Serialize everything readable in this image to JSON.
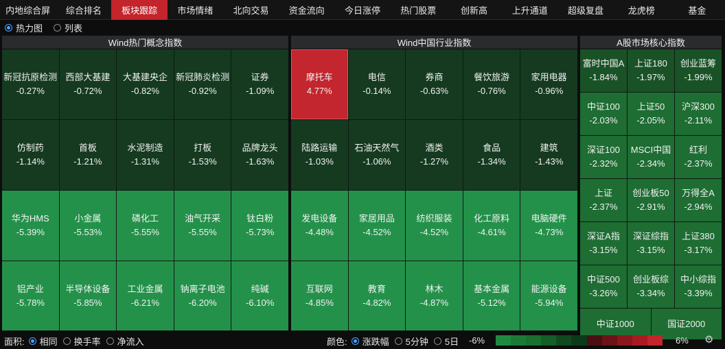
{
  "nav": {
    "tabs": [
      "内地综合屏",
      "综合排名",
      "板块跟踪",
      "市场情绪",
      "北向交易",
      "资金流向",
      "今日涨停",
      "热门股票",
      "创新高",
      "上升通道",
      "超级复盘",
      "龙虎榜",
      "基金"
    ],
    "active": "板块跟踪"
  },
  "view": {
    "options": [
      "热力图",
      "列表"
    ],
    "selected": "热力图"
  },
  "panels": [
    {
      "title": "Wind热门概念指数",
      "cells": [
        {
          "name": "新冠抗原检测",
          "pct": "-0.27%",
          "tone": "c-dark"
        },
        {
          "name": "西部大基建",
          "pct": "-0.72%",
          "tone": "c-dark"
        },
        {
          "name": "大基建央企",
          "pct": "-0.82%",
          "tone": "c-dark"
        },
        {
          "name": "新冠肺炎检测",
          "pct": "-0.92%",
          "tone": "c-dark"
        },
        {
          "name": "证券",
          "pct": "-1.09%",
          "tone": "c-dark"
        },
        {
          "name": "仿制药",
          "pct": "-1.14%",
          "tone": "c-dark"
        },
        {
          "name": "首板",
          "pct": "-1.21%",
          "tone": "c-dark"
        },
        {
          "name": "水泥制造",
          "pct": "-1.31%",
          "tone": "c-dark"
        },
        {
          "name": "打板",
          "pct": "-1.53%",
          "tone": "c-dark"
        },
        {
          "name": "品牌龙头",
          "pct": "-1.63%",
          "tone": "c-dark"
        },
        {
          "name": "华为HMS",
          "pct": "-5.39%",
          "tone": "c-bright"
        },
        {
          "name": "小金属",
          "pct": "-5.53%",
          "tone": "c-bright"
        },
        {
          "name": "磷化工",
          "pct": "-5.55%",
          "tone": "c-bright"
        },
        {
          "name": "油气开采",
          "pct": "-5.55%",
          "tone": "c-bright"
        },
        {
          "name": "钛白粉",
          "pct": "-5.73%",
          "tone": "c-bright"
        },
        {
          "name": "铝产业",
          "pct": "-5.78%",
          "tone": "c-bright"
        },
        {
          "name": "半导体设备",
          "pct": "-5.85%",
          "tone": "c-bright"
        },
        {
          "name": "工业金属",
          "pct": "-6.21%",
          "tone": "c-bright"
        },
        {
          "name": "钠离子电池",
          "pct": "-6.20%",
          "tone": "c-bright"
        },
        {
          "name": "纯碱",
          "pct": "-6.10%",
          "tone": "c-bright"
        }
      ]
    },
    {
      "title": "Wind中国行业指数",
      "cells": [
        {
          "name": "摩托车",
          "pct": "4.77%",
          "tone": "c-red"
        },
        {
          "name": "电信",
          "pct": "-0.14%",
          "tone": "c-dark"
        },
        {
          "name": "券商",
          "pct": "-0.63%",
          "tone": "c-dark"
        },
        {
          "name": "餐饮旅游",
          "pct": "-0.76%",
          "tone": "c-dark"
        },
        {
          "name": "家用电器",
          "pct": "-0.96%",
          "tone": "c-dark"
        },
        {
          "name": "陆路运输",
          "pct": "-1.03%",
          "tone": "c-dark"
        },
        {
          "name": "石油天然气",
          "pct": "-1.06%",
          "tone": "c-dark"
        },
        {
          "name": "酒类",
          "pct": "-1.27%",
          "tone": "c-dark"
        },
        {
          "name": "食品",
          "pct": "-1.34%",
          "tone": "c-dark"
        },
        {
          "name": "建筑",
          "pct": "-1.43%",
          "tone": "c-dark"
        },
        {
          "name": "发电设备",
          "pct": "-4.48%",
          "tone": "c-bright"
        },
        {
          "name": "家居用品",
          "pct": "-4.52%",
          "tone": "c-bright"
        },
        {
          "name": "纺织服装",
          "pct": "-4.52%",
          "tone": "c-bright"
        },
        {
          "name": "化工原料",
          "pct": "-4.61%",
          "tone": "c-bright"
        },
        {
          "name": "电脑硬件",
          "pct": "-4.73%",
          "tone": "c-bright"
        },
        {
          "name": "互联网",
          "pct": "-4.85%",
          "tone": "c-bright"
        },
        {
          "name": "教育",
          "pct": "-4.82%",
          "tone": "c-bright"
        },
        {
          "name": "林木",
          "pct": "-4.87%",
          "tone": "c-bright"
        },
        {
          "name": "基本金属",
          "pct": "-5.12%",
          "tone": "c-bright"
        },
        {
          "name": "能源设备",
          "pct": "-5.94%",
          "tone": "c-bright"
        }
      ]
    },
    {
      "title": "A股市场核心指数",
      "cells": [
        {
          "name": "富时中国A",
          "pct": "-1.84%",
          "tone": "c-dark2"
        },
        {
          "name": "上证180",
          "pct": "-1.97%",
          "tone": "c-dark2"
        },
        {
          "name": "创业蓝筹",
          "pct": "-1.99%",
          "tone": "c-dark2"
        },
        {
          "name": "中证100",
          "pct": "-2.03%",
          "tone": "c-mid"
        },
        {
          "name": "上证50",
          "pct": "-2.05%",
          "tone": "c-mid"
        },
        {
          "name": "沪深300",
          "pct": "-2.11%",
          "tone": "c-mid"
        },
        {
          "name": "深证100",
          "pct": "-2.32%",
          "tone": "c-mid"
        },
        {
          "name": "MSCI中国",
          "pct": "-2.34%",
          "tone": "c-mid"
        },
        {
          "name": "红利",
          "pct": "-2.37%",
          "tone": "c-mid"
        },
        {
          "name": "上证",
          "pct": "-2.37%",
          "tone": "c-mid"
        },
        {
          "name": "创业板50",
          "pct": "-2.91%",
          "tone": "c-mid"
        },
        {
          "name": "万得全A",
          "pct": "-2.94%",
          "tone": "c-mid"
        },
        {
          "name": "深证A指",
          "pct": "-3.15%",
          "tone": "c-mid"
        },
        {
          "name": "深证综指",
          "pct": "-3.15%",
          "tone": "c-mid"
        },
        {
          "name": "上证380",
          "pct": "-3.17%",
          "tone": "c-mid"
        },
        {
          "name": "中证500",
          "pct": "-3.26%",
          "tone": "c-mid"
        },
        {
          "name": "创业板综",
          "pct": "-3.34%",
          "tone": "c-mid"
        },
        {
          "name": "中小综指",
          "pct": "-3.39%",
          "tone": "c-mid"
        }
      ],
      "bottom": [
        "中证1000",
        "国证2000"
      ]
    }
  ],
  "status": {
    "area_label": "面积:",
    "area_options": [
      "相同",
      "换手率",
      "净流入"
    ],
    "area_selected": "相同",
    "color_label": "颜色:",
    "color_options": [
      "涨跌幅",
      "5分钟",
      "5日"
    ],
    "color_selected": "涨跌幅",
    "scale_min": "-6%",
    "scale_max": "6%",
    "legend_colors": [
      "#1f8a3f",
      "#1b7a36",
      "#19702f",
      "#135f27",
      "#0f4a1f",
      "#0c3a19",
      "#4a0f12",
      "#6a1318",
      "#8a171d",
      "#a81b22",
      "#c4242b"
    ]
  }
}
